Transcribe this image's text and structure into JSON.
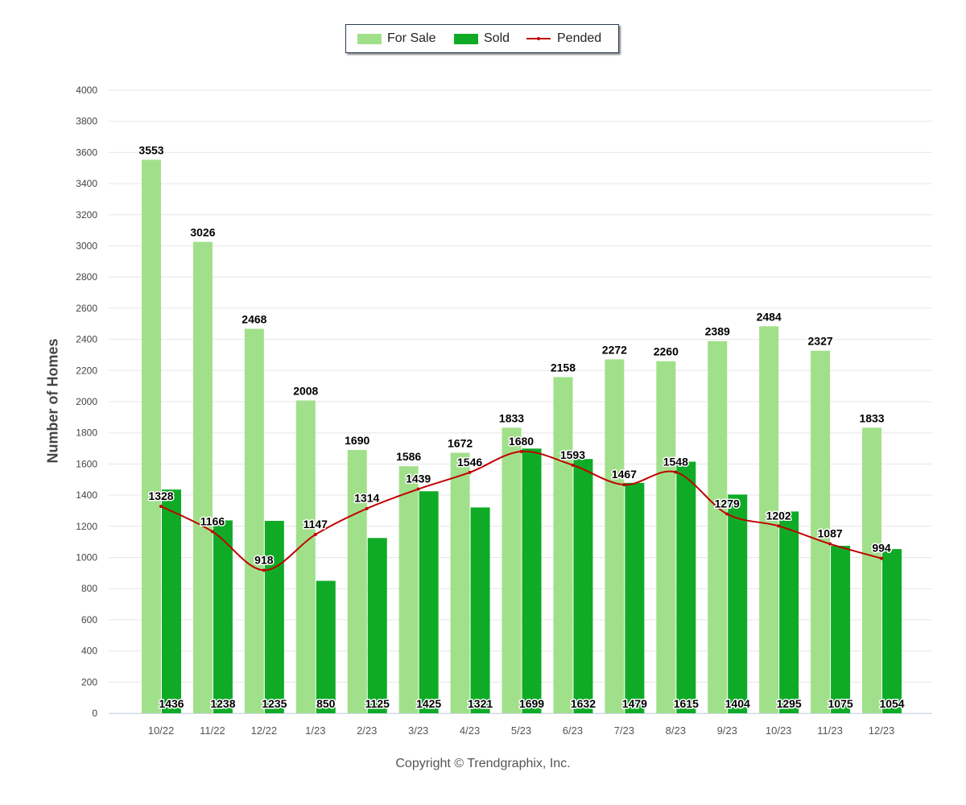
{
  "legend": {
    "for_sale": "For Sale",
    "sold": "Sold",
    "pended": "Pended"
  },
  "copyright": "Copyright © Trendgraphix, Inc.",
  "colors": {
    "for_sale": "#a1e08a",
    "sold": "#0fab27",
    "pended": "#c00000",
    "grid": "#e6e6e6"
  },
  "chart_data": {
    "type": "bar",
    "title": "",
    "xlabel": "",
    "ylabel": "Number of Homes",
    "ylim": [
      0,
      4000
    ],
    "yticks": [
      0,
      200,
      400,
      600,
      800,
      1000,
      1200,
      1400,
      1600,
      1800,
      2000,
      2200,
      2400,
      2600,
      2800,
      3000,
      3200,
      3400,
      3600,
      3800,
      4000
    ],
    "grid": true,
    "legend_position": "top-center",
    "categories": [
      "10/22",
      "11/22",
      "12/22",
      "1/23",
      "2/23",
      "3/23",
      "4/23",
      "5/23",
      "6/23",
      "7/23",
      "8/23",
      "9/23",
      "10/23",
      "11/23",
      "12/23"
    ],
    "series": [
      {
        "name": "For Sale",
        "type": "bar",
        "values": [
          3553,
          3026,
          2468,
          2008,
          1690,
          1586,
          1672,
          1833,
          2158,
          2272,
          2260,
          2389,
          2484,
          2327,
          1833
        ]
      },
      {
        "name": "Sold",
        "type": "bar",
        "values": [
          1436,
          1238,
          1235,
          850,
          1125,
          1425,
          1321,
          1699,
          1632,
          1479,
          1615,
          1404,
          1295,
          1075,
          1054
        ]
      },
      {
        "name": "Pended",
        "type": "line",
        "values": [
          1328,
          1166,
          918,
          1147,
          1314,
          1439,
          1546,
          1680,
          1593,
          1467,
          1548,
          1279,
          1202,
          1087,
          994
        ]
      }
    ]
  }
}
